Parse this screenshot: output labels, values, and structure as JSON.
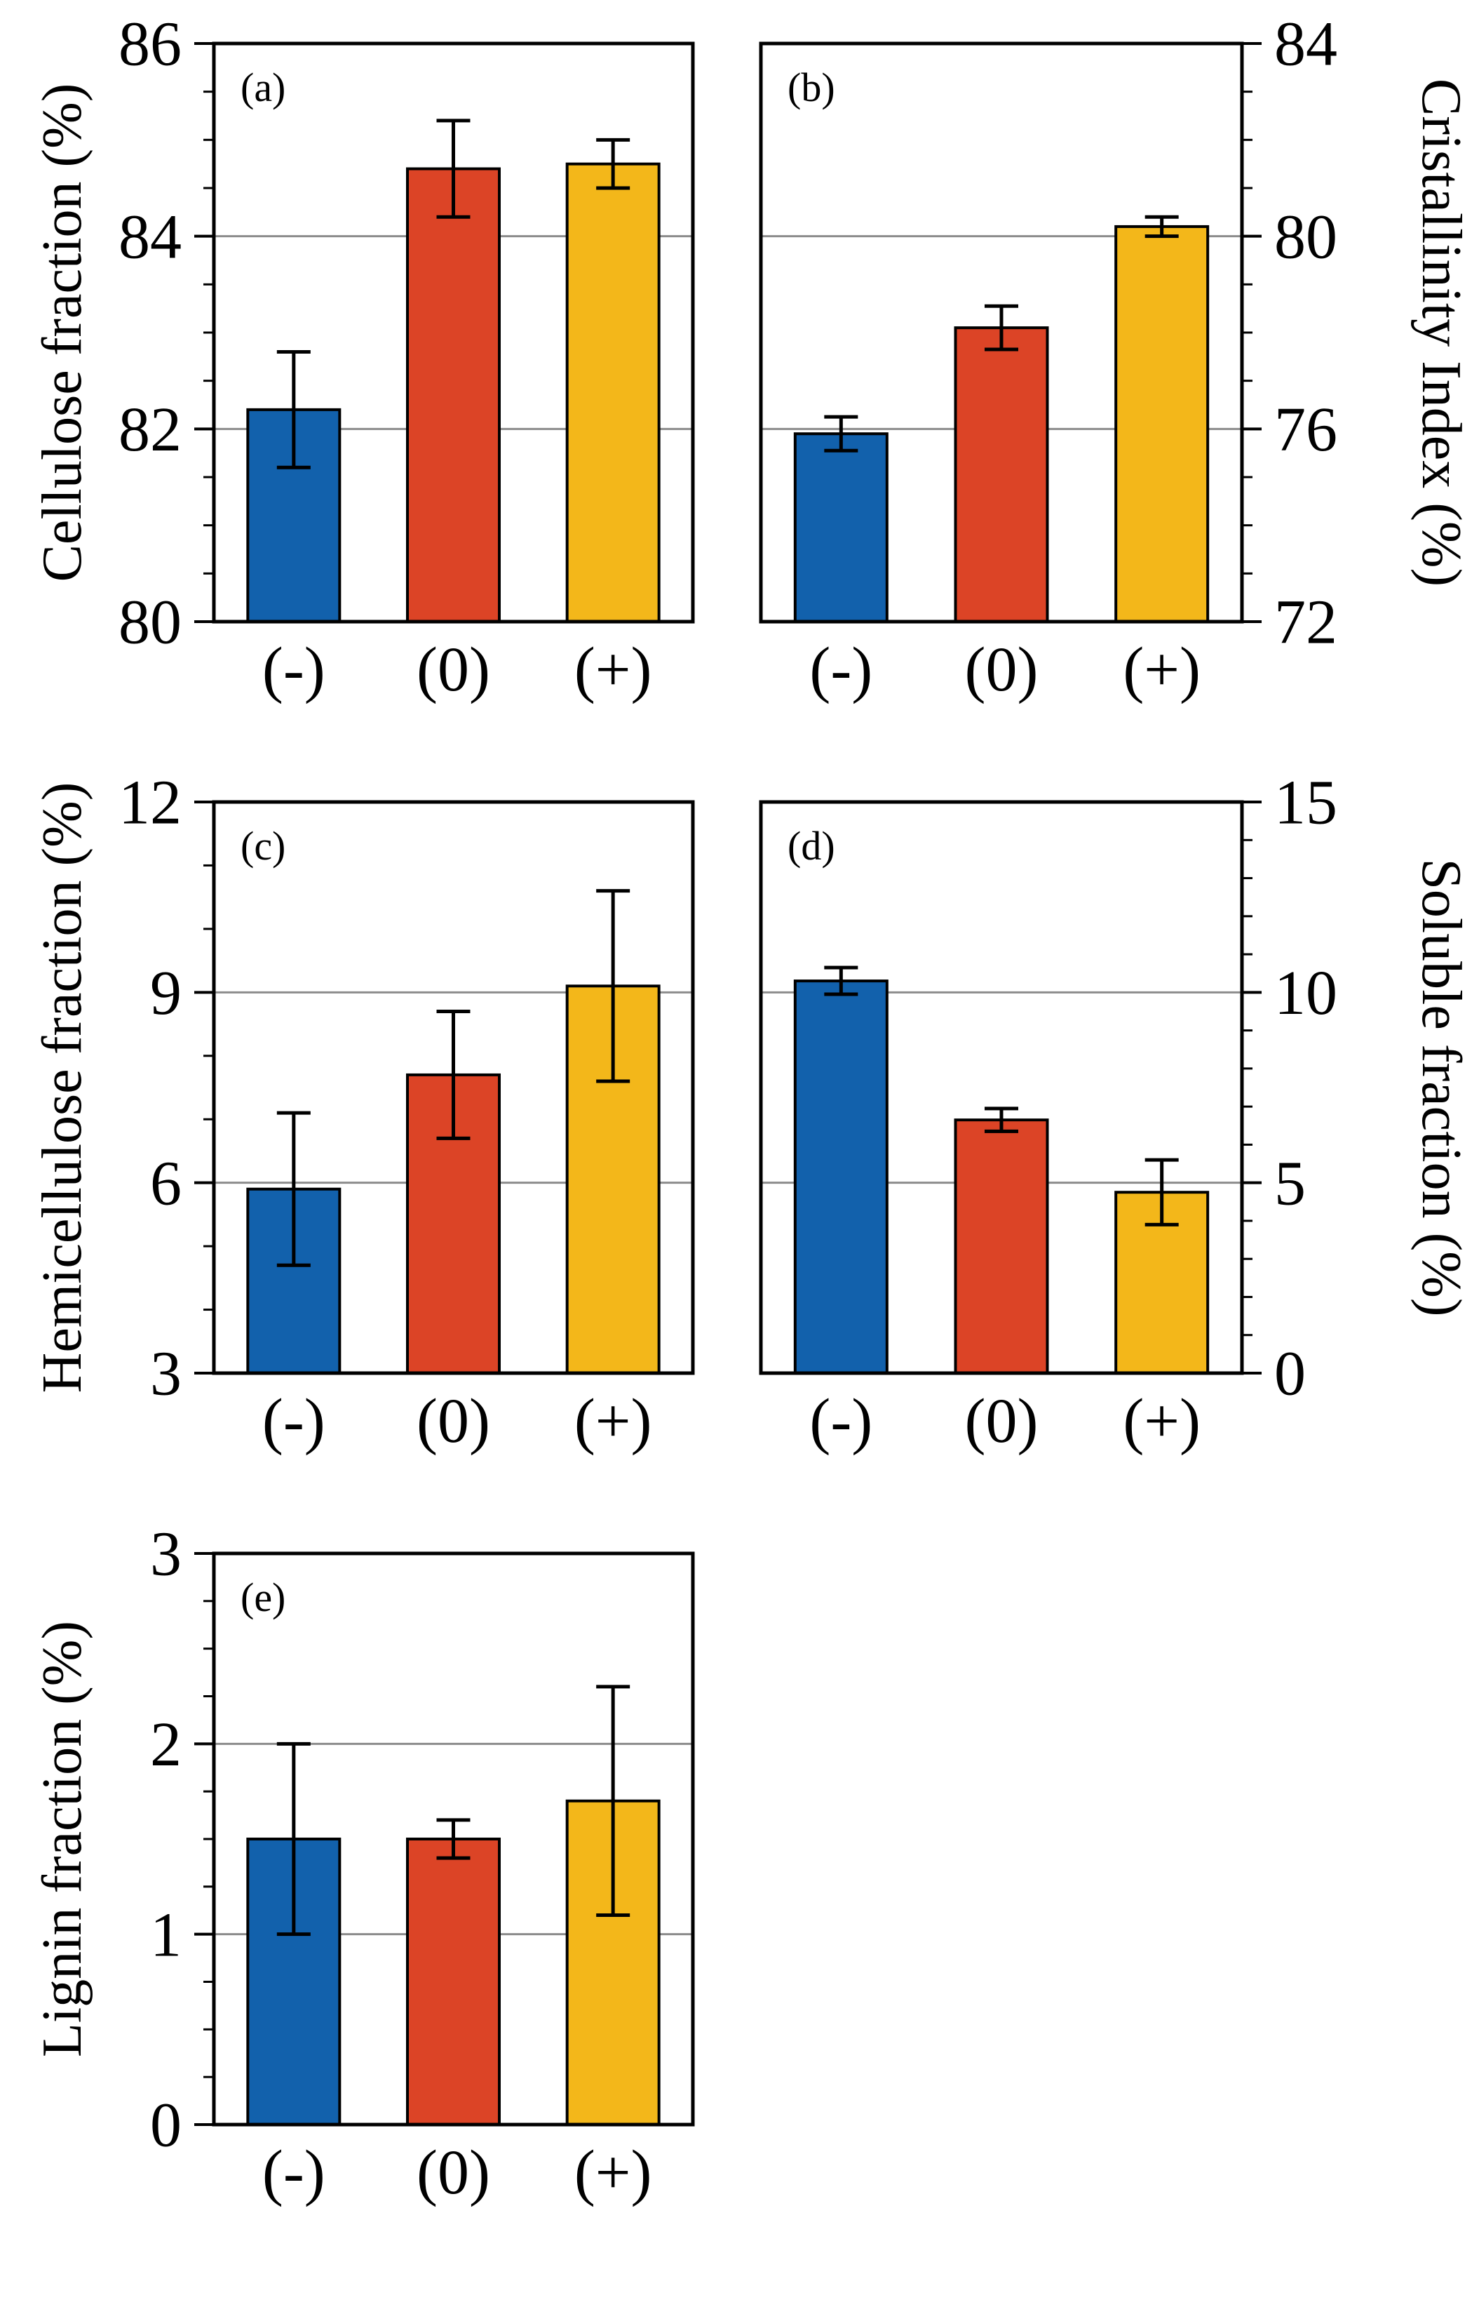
{
  "figure": {
    "background": "#ffffff",
    "categories": [
      "(-)",
      "(0)",
      "(+)"
    ],
    "bar_colors": [
      "#1261AC",
      "#DC4426",
      "#F3B71A"
    ],
    "bar_edge_color": "#000000",
    "gridline_color": "#8c8c8c",
    "error_bar_color": "#000000",
    "text_color": "#000000"
  },
  "chart_data": [
    {
      "type": "bar",
      "panel_label": "(a)",
      "ylabel": "Cellulose fraction (%)",
      "axis_side": "left",
      "ylim": [
        80,
        86
      ],
      "yticks": [
        80,
        82,
        84,
        86
      ],
      "minor_step": 0.5,
      "categories": [
        "(-)",
        "(0)",
        "(+)"
      ],
      "values": [
        82.2,
        84.7,
        84.75
      ],
      "errors": [
        0.6,
        0.5,
        0.25
      ],
      "grid": true
    },
    {
      "type": "bar",
      "panel_label": "(b)",
      "ylabel": "Cristallinity Index (%)",
      "axis_side": "right",
      "ylim": [
        72,
        84
      ],
      "yticks": [
        72,
        76,
        80,
        84
      ],
      "minor_step": 1,
      "categories": [
        "(-)",
        "(0)",
        "(+)"
      ],
      "values": [
        75.9,
        78.1,
        80.2
      ],
      "errors": [
        0.35,
        0.45,
        0.2
      ],
      "grid": true
    },
    {
      "type": "bar",
      "panel_label": "(c)",
      "ylabel": "Hemicellulose fraction (%)",
      "axis_side": "left",
      "ylim": [
        3,
        12
      ],
      "yticks": [
        3,
        6,
        9,
        12
      ],
      "minor_step": 1,
      "categories": [
        "(-)",
        "(0)",
        "(+)"
      ],
      "values": [
        5.9,
        7.7,
        9.1
      ],
      "errors": [
        1.2,
        1.0,
        1.5
      ],
      "grid": true
    },
    {
      "type": "bar",
      "panel_label": "(d)",
      "ylabel": "Soluble fraction (%)",
      "axis_side": "right",
      "ylim": [
        0,
        15
      ],
      "yticks": [
        0,
        5,
        10,
        15
      ],
      "minor_step": 1,
      "categories": [
        "(-)",
        "(0)",
        "(+)"
      ],
      "values": [
        10.3,
        6.65,
        4.75
      ],
      "errors": [
        0.35,
        0.3,
        0.85
      ],
      "grid": true
    },
    {
      "type": "bar",
      "panel_label": "(e)",
      "ylabel": "Lignin fraction (%)",
      "axis_side": "left",
      "ylim": [
        0,
        3
      ],
      "yticks": [
        0,
        1,
        2,
        3
      ],
      "minor_step": 0.25,
      "categories": [
        "(-)",
        "(0)",
        "(+)"
      ],
      "values": [
        1.5,
        1.5,
        1.7
      ],
      "errors": [
        0.5,
        0.1,
        0.6
      ],
      "grid": true
    }
  ]
}
